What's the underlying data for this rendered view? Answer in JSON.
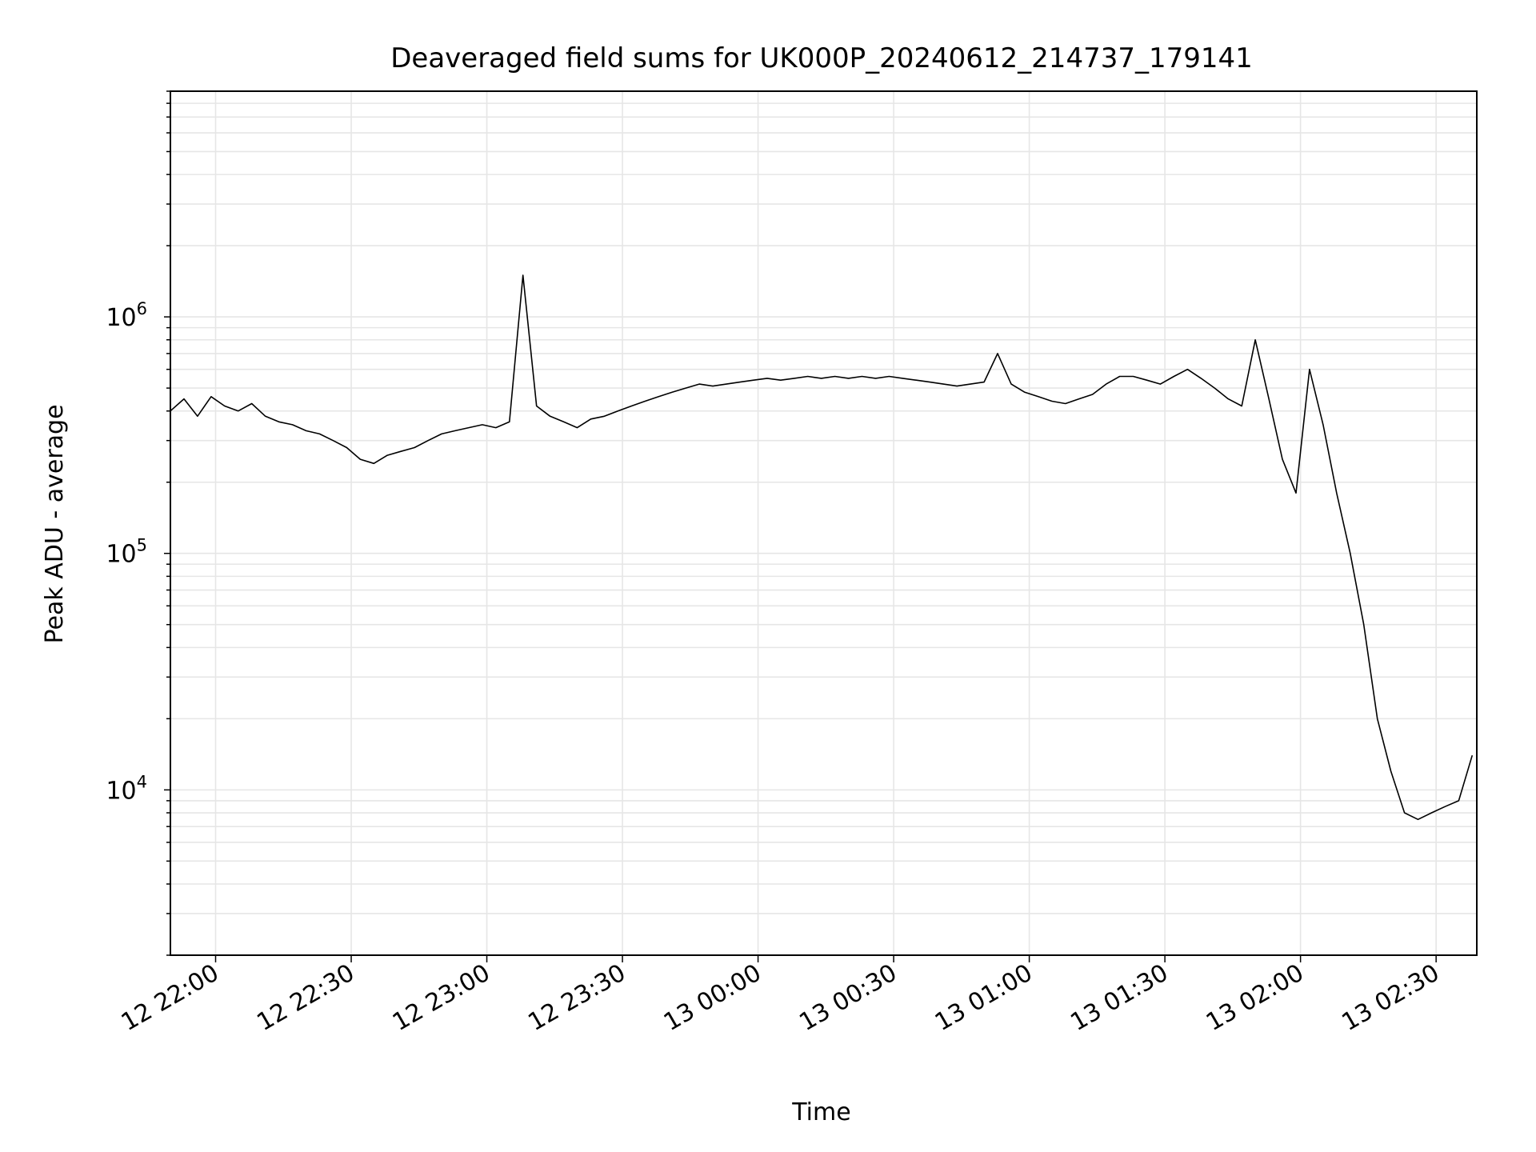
{
  "chart_data": {
    "type": "line",
    "title": "Deaveraged field sums for UK000P_20240612_214737_179141",
    "xlabel": "Time",
    "ylabel": "Peak ADU - average",
    "y_scale": "log",
    "x_range": [
      "12 21:50",
      "13 02:39"
    ],
    "ylim": [
      2000,
      9000000
    ],
    "grid": true,
    "line_color": "#000000",
    "grid_color": "#e6e6e6",
    "x_ticks": [
      {
        "label": "12 22:00",
        "t": "12 22:00"
      },
      {
        "label": "12 22:30",
        "t": "12 22:30"
      },
      {
        "label": "12 23:00",
        "t": "12 23:00"
      },
      {
        "label": "12 23:30",
        "t": "12 23:30"
      },
      {
        "label": "13 00:00",
        "t": "13 00:00"
      },
      {
        "label": "13 00:30",
        "t": "13 00:30"
      },
      {
        "label": "13 01:00",
        "t": "13 01:00"
      },
      {
        "label": "13 01:30",
        "t": "13 01:30"
      },
      {
        "label": "13 02:00",
        "t": "13 02:00"
      },
      {
        "label": "13 02:30",
        "t": "13 02:30"
      }
    ],
    "y_ticks": [
      {
        "base": "10",
        "exp": "4",
        "value": 10000
      },
      {
        "base": "10",
        "exp": "5",
        "value": 100000
      },
      {
        "base": "10",
        "exp": "6",
        "value": 1000000
      }
    ],
    "series": [
      {
        "points": [
          [
            "12 21:50",
            400000
          ],
          [
            "12 21:53",
            450000
          ],
          [
            "12 21:56",
            380000
          ],
          [
            "12 21:59",
            460000
          ],
          [
            "12 22:02",
            420000
          ],
          [
            "12 22:05",
            400000
          ],
          [
            "12 22:08",
            430000
          ],
          [
            "12 22:11",
            380000
          ],
          [
            "12 22:14",
            360000
          ],
          [
            "12 22:17",
            350000
          ],
          [
            "12 22:20",
            330000
          ],
          [
            "12 22:23",
            320000
          ],
          [
            "12 22:26",
            300000
          ],
          [
            "12 22:29",
            280000
          ],
          [
            "12 22:32",
            250000
          ],
          [
            "12 22:35",
            240000
          ],
          [
            "12 22:38",
            260000
          ],
          [
            "12 22:41",
            270000
          ],
          [
            "12 22:44",
            280000
          ],
          [
            "12 22:47",
            300000
          ],
          [
            "12 22:50",
            320000
          ],
          [
            "12 22:53",
            330000
          ],
          [
            "12 22:56",
            340000
          ],
          [
            "12 22:59",
            350000
          ],
          [
            "12 23:02",
            340000
          ],
          [
            "12 23:05",
            360000
          ],
          [
            "12 23:08",
            1500000
          ],
          [
            "12 23:11",
            420000
          ],
          [
            "12 23:14",
            380000
          ],
          [
            "12 23:17",
            360000
          ],
          [
            "12 23:20",
            340000
          ],
          [
            "12 23:23",
            370000
          ],
          [
            "12 23:26",
            380000
          ],
          [
            "12 23:29",
            400000
          ],
          [
            "12 23:32",
            420000
          ],
          [
            "12 23:35",
            440000
          ],
          [
            "12 23:38",
            460000
          ],
          [
            "12 23:41",
            480000
          ],
          [
            "12 23:44",
            500000
          ],
          [
            "12 23:47",
            520000
          ],
          [
            "12 23:50",
            510000
          ],
          [
            "12 23:53",
            520000
          ],
          [
            "12 23:56",
            530000
          ],
          [
            "12 23:59",
            540000
          ],
          [
            "13 00:02",
            550000
          ],
          [
            "13 00:05",
            540000
          ],
          [
            "13 00:08",
            550000
          ],
          [
            "13 00:11",
            560000
          ],
          [
            "13 00:14",
            550000
          ],
          [
            "13 00:17",
            560000
          ],
          [
            "13 00:20",
            550000
          ],
          [
            "13 00:23",
            560000
          ],
          [
            "13 00:26",
            550000
          ],
          [
            "13 00:29",
            560000
          ],
          [
            "13 00:32",
            550000
          ],
          [
            "13 00:35",
            540000
          ],
          [
            "13 00:38",
            530000
          ],
          [
            "13 00:41",
            520000
          ],
          [
            "13 00:44",
            510000
          ],
          [
            "13 00:47",
            520000
          ],
          [
            "13 00:50",
            530000
          ],
          [
            "13 00:53",
            700000
          ],
          [
            "13 00:56",
            520000
          ],
          [
            "13 00:59",
            480000
          ],
          [
            "13 01:02",
            460000
          ],
          [
            "13 01:05",
            440000
          ],
          [
            "13 01:08",
            430000
          ],
          [
            "13 01:11",
            450000
          ],
          [
            "13 01:14",
            470000
          ],
          [
            "13 01:17",
            520000
          ],
          [
            "13 01:20",
            560000
          ],
          [
            "13 01:23",
            560000
          ],
          [
            "13 01:26",
            540000
          ],
          [
            "13 01:29",
            520000
          ],
          [
            "13 01:32",
            560000
          ],
          [
            "13 01:35",
            600000
          ],
          [
            "13 01:38",
            550000
          ],
          [
            "13 01:41",
            500000
          ],
          [
            "13 01:44",
            450000
          ],
          [
            "13 01:47",
            420000
          ],
          [
            "13 01:50",
            800000
          ],
          [
            "13 01:53",
            450000
          ],
          [
            "13 01:56",
            250000
          ],
          [
            "13 01:59",
            180000
          ],
          [
            "13 02:02",
            600000
          ],
          [
            "13 02:05",
            350000
          ],
          [
            "13 02:08",
            180000
          ],
          [
            "13 02:11",
            100000
          ],
          [
            "13 02:14",
            50000
          ],
          [
            "13 02:17",
            20000
          ],
          [
            "13 02:20",
            12000
          ],
          [
            "13 02:23",
            8000
          ],
          [
            "13 02:26",
            7500
          ],
          [
            "13 02:29",
            8000
          ],
          [
            "13 02:32",
            8500
          ],
          [
            "13 02:35",
            9000
          ],
          [
            "13 02:38",
            14000
          ]
        ]
      }
    ]
  }
}
